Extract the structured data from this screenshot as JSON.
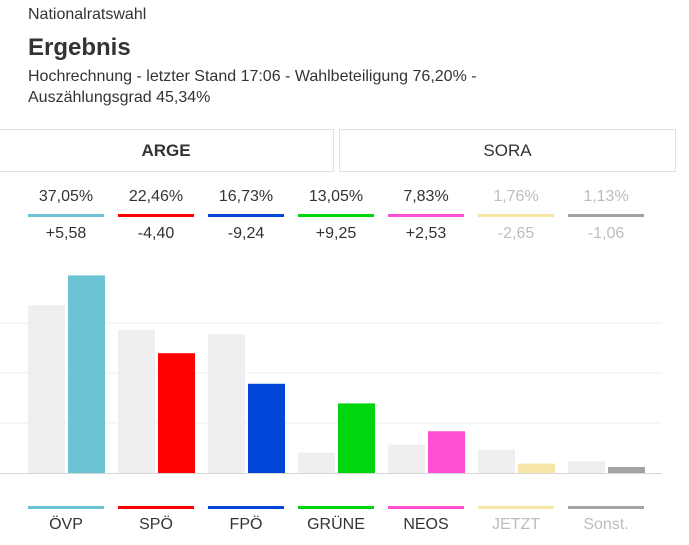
{
  "header": {
    "kicker": "Nationalratswahl",
    "title": "Ergebnis",
    "subtitle": "Hochrechnung - letzter Stand 17:06 - Wahlbeteiligung 76,20% - Auszählungsgrad 45,34%"
  },
  "tabs": [
    {
      "label": "ARGE",
      "active": true
    },
    {
      "label": "SORA",
      "active": false
    }
  ],
  "chart_data": {
    "type": "bar",
    "categories": [
      "ÖVP",
      "SPÖ",
      "FPÖ",
      "GRÜNE",
      "NEOS",
      "JETZT",
      "Sonst."
    ],
    "colors": [
      "#6ac4d4",
      "#ff0000",
      "#0047d9",
      "#00d610",
      "#ff4fd2",
      "#f5e6a8",
      "#a3a3a3"
    ],
    "faded": [
      false,
      false,
      false,
      false,
      false,
      true,
      true
    ],
    "percent_labels": [
      "37,05%",
      "22,46%",
      "16,73%",
      "13,05%",
      "7,83%",
      "1,76%",
      "1,13%"
    ],
    "diff_labels": [
      "+5,58",
      "-4,40",
      "-9,24",
      "+9,25",
      "+2,53",
      "-2,65",
      "-1,06"
    ],
    "series": [
      {
        "values": [
          31.47,
          26.86,
          25.97,
          3.8,
          5.3,
          4.41,
          2.19
        ]
      },
      {
        "values": [
          37.05,
          22.46,
          16.73,
          13.05,
          7.83,
          1.76,
          1.13
        ]
      }
    ],
    "previous_color": "#efefef",
    "ylim": [
      0,
      37.5
    ],
    "grid": true
  }
}
